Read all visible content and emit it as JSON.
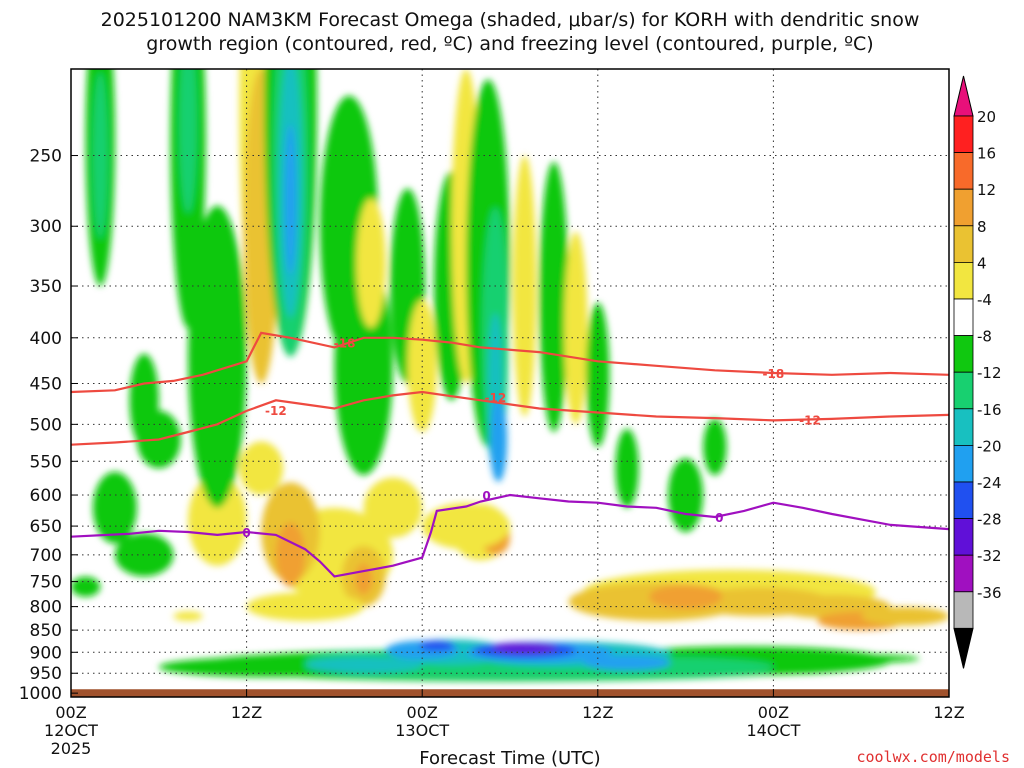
{
  "chart_data": {
    "type": "heatmap",
    "title_line1": "2025101200 NAM3KM Forecast Omega (shaded, μbar/s) for KORH with dendritic snow",
    "title_line2": "growth region (contoured, red, ºC) and freezing level (contoured, purple, ºC)",
    "xlabel": "Forecast Time (UTC)",
    "credit": "coolwx.com/models",
    "y_axis": {
      "units": "hPa",
      "range": [
        1010,
        200
      ],
      "ticks": [
        250,
        300,
        350,
        400,
        450,
        500,
        550,
        600,
        650,
        700,
        750,
        800,
        850,
        900,
        950,
        1000
      ]
    },
    "x_axis": {
      "range_hours": [
        0,
        60
      ],
      "ticks": [
        {
          "hour": 0,
          "line1": "00Z",
          "line2": "12OCT",
          "line3": "2025"
        },
        {
          "hour": 12,
          "line1": "12Z",
          "line2": "",
          "line3": ""
        },
        {
          "hour": 24,
          "line1": "00Z",
          "line2": "13OCT",
          "line3": ""
        },
        {
          "hour": 36,
          "line1": "12Z",
          "line2": "",
          "line3": ""
        },
        {
          "hour": 48,
          "line1": "00Z",
          "line2": "14OCT",
          "line3": ""
        },
        {
          "hour": 60,
          "line1": "12Z",
          "line2": "",
          "line3": ""
        }
      ]
    },
    "colorbar": {
      "labels": [
        "20",
        "16",
        "12",
        "8",
        "4",
        "-4",
        "-8",
        "-12",
        "-16",
        "-20",
        "-24",
        "-28",
        "-32",
        "-36"
      ],
      "colors": [
        "#ff2020",
        "#f86a2a",
        "#f0a030",
        "#eac232",
        "#f2e640",
        "#ffffff",
        "#10c810",
        "#18d070",
        "#18c0c0",
        "#20a0f0",
        "#2050f0",
        "#6010d8",
        "#a010c0",
        "#b8b8b8"
      ],
      "top_triangle_color": "#e8107a",
      "bottom_triangle_color": "#000000",
      "neutral_bin": "-4 to 4 (white)"
    },
    "ground_color": "#a0522d",
    "contours": [
      {
        "name": "-18",
        "color": "#ee4a40",
        "label": "-18",
        "points": [
          [
            0,
            460
          ],
          [
            3,
            458
          ],
          [
            5,
            450
          ],
          [
            7,
            447
          ],
          [
            9,
            440
          ],
          [
            11,
            430
          ],
          [
            12,
            425
          ],
          [
            13,
            395
          ],
          [
            15,
            400
          ],
          [
            18,
            410
          ],
          [
            20,
            400
          ],
          [
            22,
            400
          ],
          [
            24,
            402
          ],
          [
            26,
            405
          ],
          [
            28,
            410
          ],
          [
            32,
            415
          ],
          [
            36,
            425
          ],
          [
            40,
            430
          ],
          [
            44,
            435
          ],
          [
            48,
            438
          ],
          [
            52,
            440
          ],
          [
            56,
            438
          ],
          [
            60,
            440
          ]
        ],
        "label_at": [
          [
            18.7,
            405
          ],
          [
            48,
            438
          ]
        ]
      },
      {
        "name": "-12",
        "color": "#ee4a40",
        "label": "-12",
        "points": [
          [
            0,
            527
          ],
          [
            3,
            524
          ],
          [
            6,
            520
          ],
          [
            8,
            510
          ],
          [
            10,
            500
          ],
          [
            12,
            483
          ],
          [
            14,
            470
          ],
          [
            16,
            475
          ],
          [
            18,
            480
          ],
          [
            20,
            470
          ],
          [
            22,
            464
          ],
          [
            24,
            460
          ],
          [
            26,
            465
          ],
          [
            28,
            470
          ],
          [
            32,
            480
          ],
          [
            36,
            485
          ],
          [
            40,
            490
          ],
          [
            44,
            492
          ],
          [
            48,
            495
          ],
          [
            52,
            493
          ],
          [
            56,
            490
          ],
          [
            60,
            488
          ]
        ],
        "label_at": [
          [
            14,
            482
          ],
          [
            29,
            466
          ],
          [
            50.5,
            494
          ]
        ]
      },
      {
        "name": "0",
        "color": "#a010c0",
        "label": "0",
        "points": [
          [
            0,
            668
          ],
          [
            4,
            663
          ],
          [
            6,
            658
          ],
          [
            8,
            660
          ],
          [
            10,
            665
          ],
          [
            12,
            660
          ],
          [
            14,
            665
          ],
          [
            16,
            690
          ],
          [
            17,
            712
          ],
          [
            18,
            740
          ],
          [
            20,
            730
          ],
          [
            22,
            720
          ],
          [
            24,
            705
          ],
          [
            24.6,
            660
          ],
          [
            25,
            625
          ],
          [
            27,
            618
          ],
          [
            28,
            610
          ],
          [
            30,
            600
          ],
          [
            32,
            605
          ],
          [
            34,
            610
          ],
          [
            36,
            612
          ],
          [
            38,
            618
          ],
          [
            40,
            620
          ],
          [
            42,
            630
          ],
          [
            44,
            635
          ],
          [
            46,
            625
          ],
          [
            48,
            612
          ],
          [
            50,
            620
          ],
          [
            52,
            630
          ],
          [
            56,
            648
          ],
          [
            60,
            655
          ]
        ],
        "label_at": [
          [
            12,
            660
          ],
          [
            28.4,
            600
          ],
          [
            44.3,
            635
          ]
        ]
      }
    ]
  }
}
